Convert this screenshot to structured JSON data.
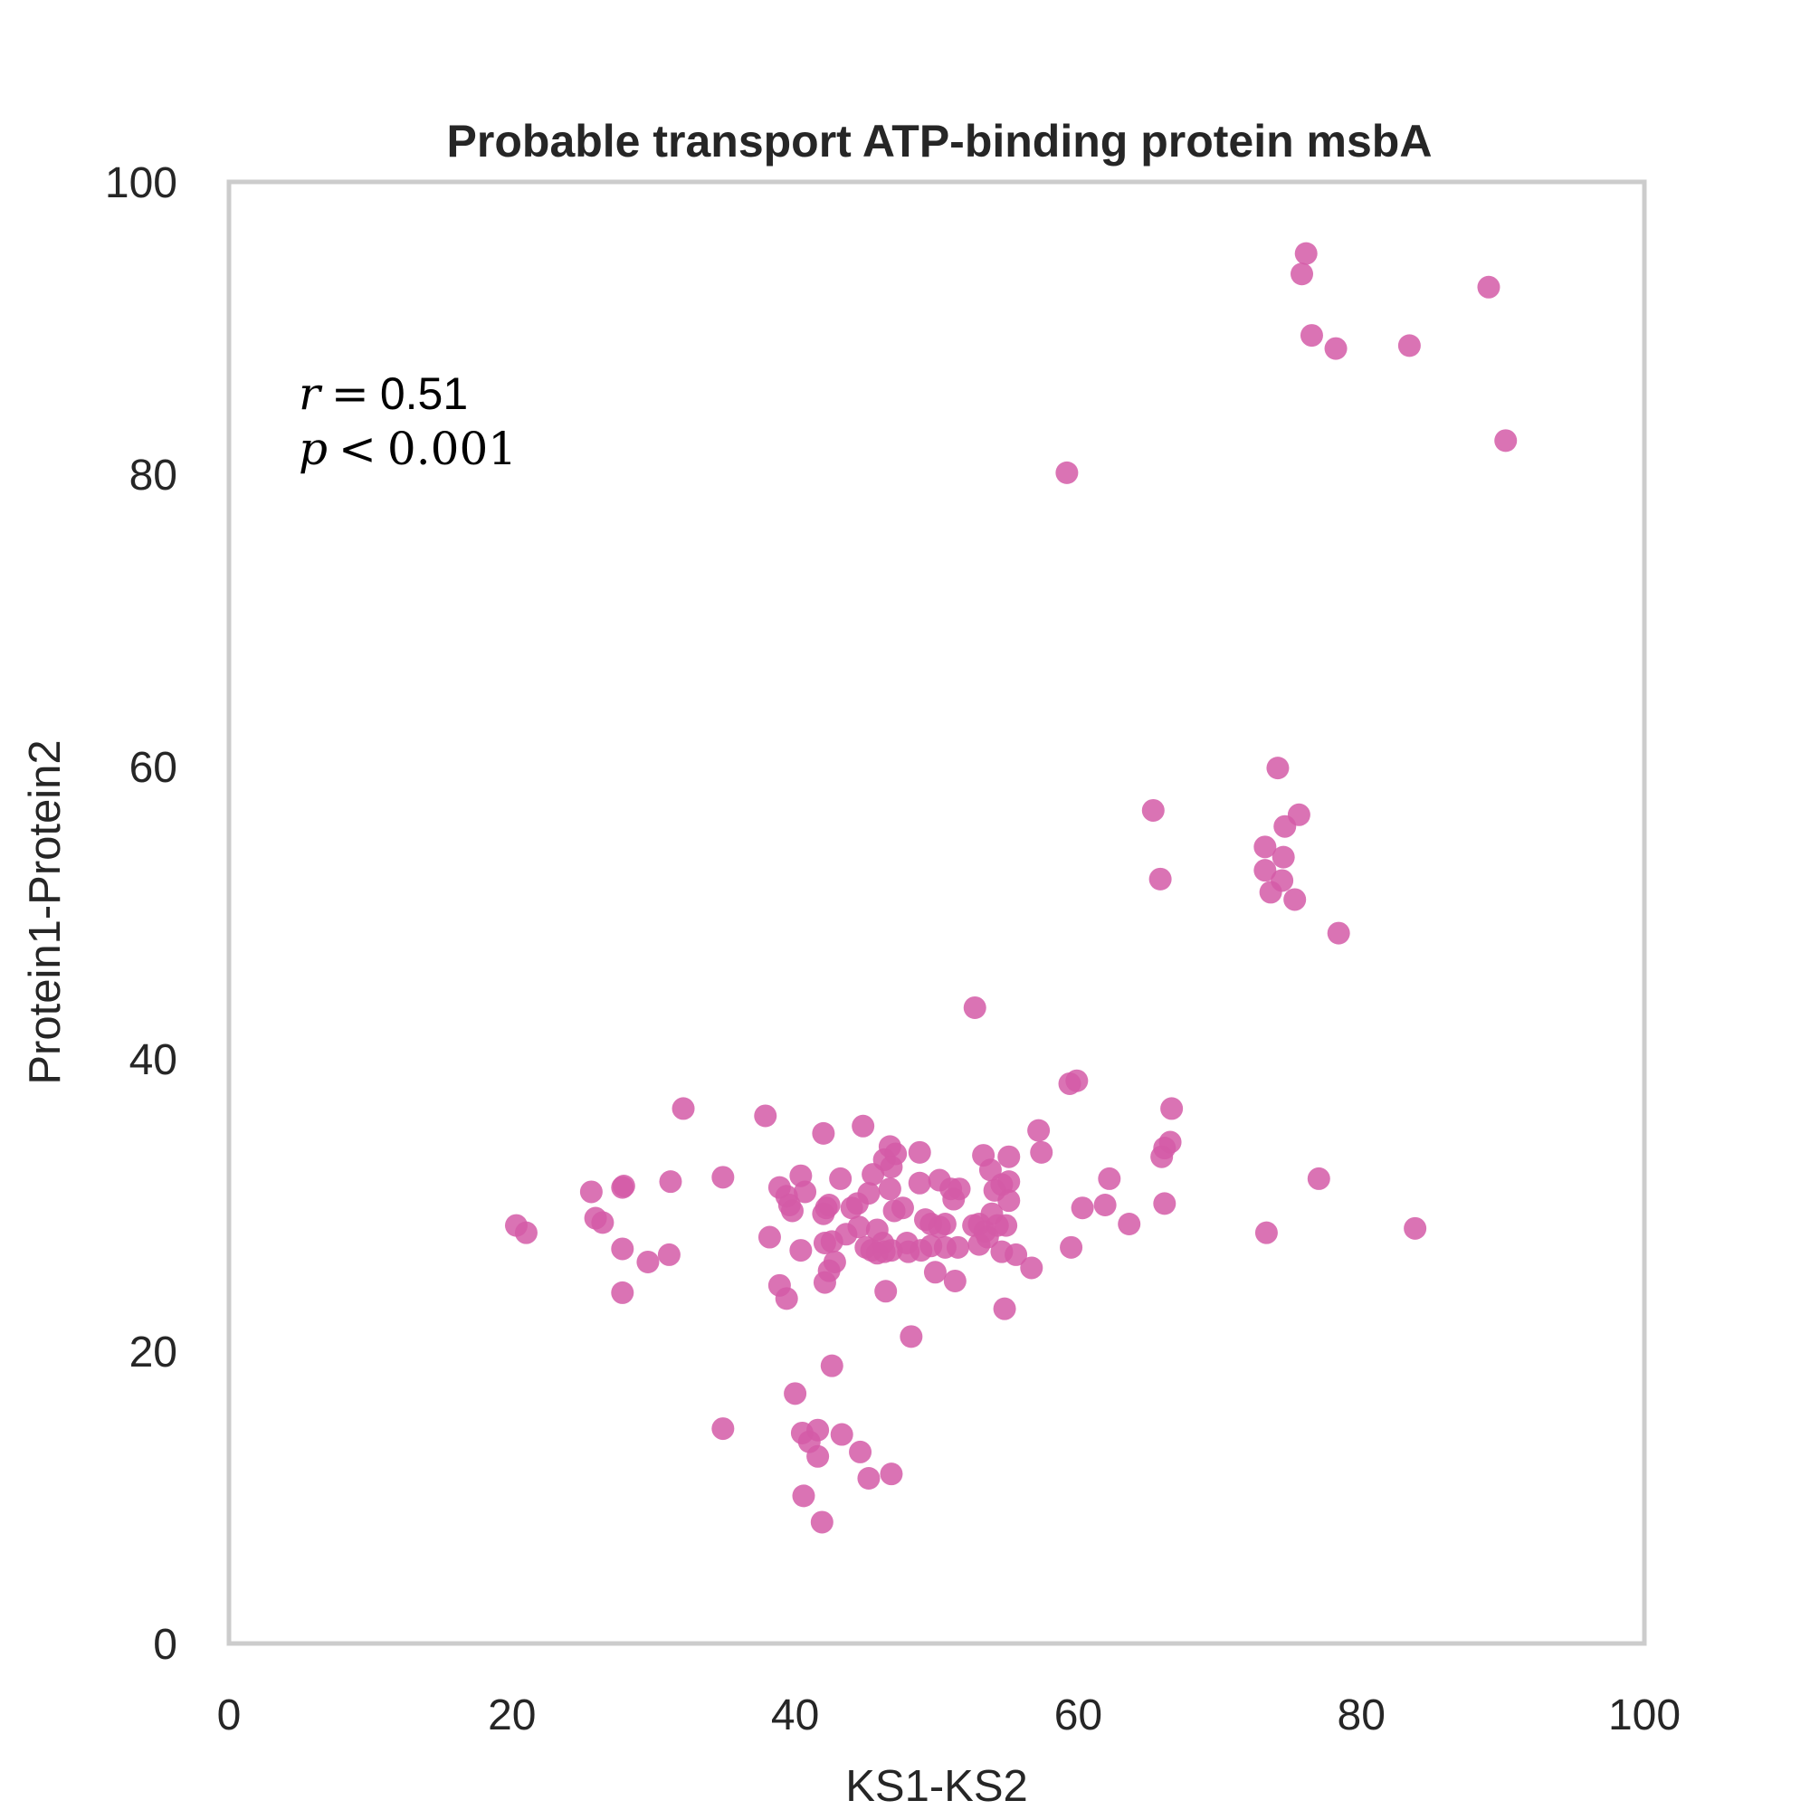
{
  "chart_data": {
    "type": "scatter",
    "title": "Probable transport ATP-binding protein msbA",
    "xlabel": "KS1-KS2",
    "ylabel": "Protein1-Protein2",
    "xlim": [
      0,
      100
    ],
    "ylim": [
      0,
      100
    ],
    "xticks": [
      "0",
      "20",
      "40",
      "60",
      "80",
      "100"
    ],
    "yticks": [
      "0",
      "20",
      "40",
      "60",
      "80",
      "100"
    ],
    "grid": false,
    "color": "#d45aa7",
    "annotation": {
      "r_label": "r",
      "r_value": "0.51",
      "p_label": "p",
      "p_value": "0.001"
    },
    "points": [
      [
        76.1,
        95.1
      ],
      [
        75.8,
        93.7
      ],
      [
        76.5,
        89.5
      ],
      [
        78.2,
        88.6
      ],
      [
        83.4,
        88.8
      ],
      [
        89.0,
        92.8
      ],
      [
        90.2,
        82.3
      ],
      [
        59.2,
        80.1
      ],
      [
        74.1,
        59.9
      ],
      [
        75.6,
        56.7
      ],
      [
        74.6,
        55.9
      ],
      [
        65.3,
        57.0
      ],
      [
        65.8,
        52.3
      ],
      [
        73.2,
        54.5
      ],
      [
        74.5,
        53.8
      ],
      [
        73.2,
        52.9
      ],
      [
        74.4,
        52.2
      ],
      [
        73.6,
        51.4
      ],
      [
        75.3,
        50.9
      ],
      [
        78.4,
        48.6
      ],
      [
        52.7,
        43.5
      ],
      [
        59.4,
        38.3
      ],
      [
        59.9,
        38.5
      ],
      [
        66.6,
        36.6
      ],
      [
        57.2,
        35.1
      ],
      [
        57.4,
        33.6
      ],
      [
        66.5,
        34.3
      ],
      [
        66.1,
        33.9
      ],
      [
        65.9,
        33.3
      ],
      [
        62.2,
        31.8
      ],
      [
        61.9,
        30.0
      ],
      [
        60.3,
        29.8
      ],
      [
        66.1,
        30.1
      ],
      [
        63.6,
        28.7
      ],
      [
        59.5,
        27.1
      ],
      [
        77.0,
        31.8
      ],
      [
        73.3,
        28.1
      ],
      [
        83.8,
        28.4
      ],
      [
        20.3,
        28.6
      ],
      [
        21.0,
        28.1
      ],
      [
        25.6,
        30.9
      ],
      [
        27.8,
        31.2
      ],
      [
        27.9,
        31.3
      ],
      [
        31.2,
        31.6
      ],
      [
        34.9,
        31.9
      ],
      [
        25.9,
        29.1
      ],
      [
        26.4,
        28.8
      ],
      [
        27.8,
        27.0
      ],
      [
        29.6,
        26.1
      ],
      [
        31.1,
        26.6
      ],
      [
        27.8,
        24.0
      ],
      [
        32.1,
        36.6
      ],
      [
        37.9,
        36.1
      ],
      [
        38.2,
        27.8
      ],
      [
        38.9,
        31.2
      ],
      [
        39.4,
        30.6
      ],
      [
        39.6,
        30.0
      ],
      [
        39.8,
        29.6
      ],
      [
        40.4,
        32.0
      ],
      [
        40.7,
        30.9
      ],
      [
        40.4,
        26.9
      ],
      [
        38.9,
        24.5
      ],
      [
        39.4,
        23.6
      ],
      [
        42.0,
        34.9
      ],
      [
        42.2,
        29.8
      ],
      [
        42.0,
        29.4
      ],
      [
        42.4,
        30.0
      ],
      [
        42.1,
        27.4
      ],
      [
        42.6,
        27.5
      ],
      [
        42.8,
        26.1
      ],
      [
        42.4,
        25.5
      ],
      [
        42.1,
        24.7
      ],
      [
        43.2,
        31.8
      ],
      [
        43.6,
        28.0
      ],
      [
        44.0,
        29.8
      ],
      [
        44.4,
        30.1
      ],
      [
        44.8,
        35.4
      ],
      [
        44.5,
        28.5
      ],
      [
        45.2,
        30.8
      ],
      [
        45.5,
        32.1
      ],
      [
        45.8,
        28.3
      ],
      [
        46.2,
        27.4
      ],
      [
        45.0,
        27.1
      ],
      [
        45.4,
        26.9
      ],
      [
        45.8,
        26.7
      ],
      [
        46.3,
        26.8
      ],
      [
        46.8,
        26.9
      ],
      [
        46.7,
        34.0
      ],
      [
        47.1,
        33.5
      ],
      [
        46.3,
        33.1
      ],
      [
        46.8,
        32.6
      ],
      [
        46.7,
        31.1
      ],
      [
        47.0,
        29.6
      ],
      [
        47.6,
        29.8
      ],
      [
        47.9,
        27.4
      ],
      [
        48.0,
        26.8
      ],
      [
        48.8,
        33.6
      ],
      [
        48.8,
        31.5
      ],
      [
        49.2,
        29.0
      ],
      [
        49.6,
        28.7
      ],
      [
        49.6,
        27.2
      ],
      [
        48.9,
        26.9
      ],
      [
        46.4,
        24.1
      ],
      [
        48.2,
        21.0
      ],
      [
        50.2,
        31.7
      ],
      [
        51.0,
        31.1
      ],
      [
        51.2,
        30.4
      ],
      [
        51.6,
        31.1
      ],
      [
        50.6,
        28.7
      ],
      [
        50.2,
        28.5
      ],
      [
        50.6,
        27.1
      ],
      [
        51.5,
        27.1
      ],
      [
        49.9,
        25.4
      ],
      [
        51.3,
        24.8
      ],
      [
        53.3,
        33.4
      ],
      [
        53.8,
        32.4
      ],
      [
        54.1,
        31.0
      ],
      [
        54.6,
        31.4
      ],
      [
        55.1,
        31.6
      ],
      [
        55.1,
        30.3
      ],
      [
        55.1,
        33.3
      ],
      [
        53.0,
        28.7
      ],
      [
        52.6,
        28.6
      ],
      [
        53.4,
        28.2
      ],
      [
        53.6,
        27.8
      ],
      [
        53.9,
        29.4
      ],
      [
        54.3,
        28.6
      ],
      [
        53.0,
        27.3
      ],
      [
        54.6,
        26.8
      ],
      [
        55.6,
        26.6
      ],
      [
        56.7,
        25.7
      ],
      [
        54.9,
        28.6
      ],
      [
        54.8,
        22.9
      ],
      [
        40.0,
        17.1
      ],
      [
        42.6,
        19.0
      ],
      [
        34.9,
        14.7
      ],
      [
        40.5,
        14.4
      ],
      [
        41.0,
        13.8
      ],
      [
        41.6,
        14.6
      ],
      [
        41.6,
        12.8
      ],
      [
        43.3,
        14.3
      ],
      [
        44.6,
        13.1
      ],
      [
        45.2,
        11.3
      ],
      [
        46.8,
        11.6
      ],
      [
        40.6,
        10.1
      ],
      [
        41.9,
        8.3
      ]
    ]
  }
}
